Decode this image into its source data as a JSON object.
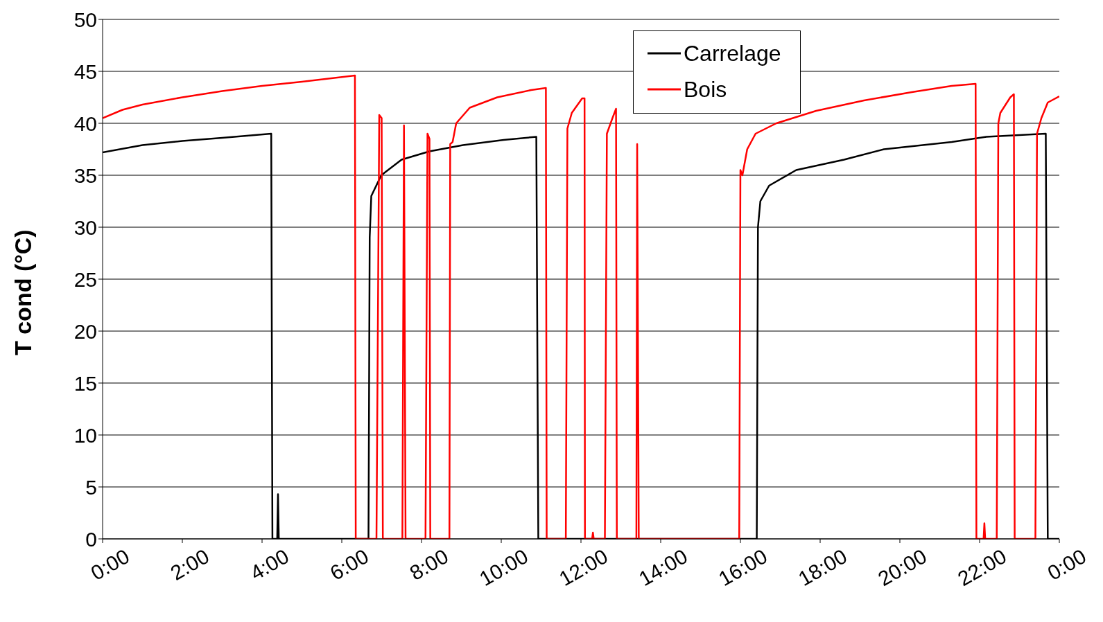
{
  "chart_data": {
    "type": "line",
    "ylabel": "T cond (°C)",
    "xlim": [
      0,
      24
    ],
    "ylim": [
      0,
      50
    ],
    "yticks": [
      0,
      5,
      10,
      15,
      20,
      25,
      30,
      35,
      40,
      45,
      50
    ],
    "xticks": [
      {
        "value": 0,
        "label": "0:00"
      },
      {
        "value": 2,
        "label": "2:00"
      },
      {
        "value": 4,
        "label": "4:00"
      },
      {
        "value": 6,
        "label": "6:00"
      },
      {
        "value": 8,
        "label": "8:00"
      },
      {
        "value": 10,
        "label": "10:00"
      },
      {
        "value": 12,
        "label": "12:00"
      },
      {
        "value": 14,
        "label": "14:00"
      },
      {
        "value": 16,
        "label": "16:00"
      },
      {
        "value": 18,
        "label": "18:00"
      },
      {
        "value": 20,
        "label": "20:00"
      },
      {
        "value": 22,
        "label": "22:00"
      },
      {
        "value": 24,
        "label": "0:00"
      }
    ],
    "grid": "y",
    "legend": "top right",
    "marker": "none",
    "line_style": "solid",
    "series": [
      {
        "name": "Carrelage",
        "color": "#000000",
        "x": [
          0,
          1,
          2,
          3,
          4.23,
          4.26,
          4.38,
          4.4,
          4.42,
          6.67,
          6.7,
          6.74,
          6.99,
          7.5,
          8.2,
          9.04,
          10.06,
          10.88,
          10.93,
          16.41,
          16.44,
          16.5,
          16.72,
          17.4,
          18.6,
          19.6,
          21.3,
          22.17,
          23.66,
          23.71,
          24
        ],
        "values": [
          37.2,
          37.9,
          38.3,
          38.6,
          39.0,
          0,
          0,
          4.3,
          0,
          0,
          29,
          33,
          35,
          36.5,
          37.3,
          37.9,
          38.4,
          38.7,
          0,
          0,
          30,
          32.5,
          34,
          35.5,
          36.5,
          37.5,
          38.2,
          38.7,
          39.0,
          0,
          0
        ]
      },
      {
        "name": "Bois",
        "color": "#ff0000",
        "x": [
          0,
          0.5,
          1,
          2,
          3,
          4,
          5,
          6.33,
          6.35,
          6.87,
          6.94,
          7.0,
          7.03,
          7.52,
          7.56,
          7.6,
          8.1,
          8.15,
          8.2,
          8.22,
          8.7,
          8.72,
          8.78,
          8.87,
          9.21,
          9.9,
          10.75,
          11.12,
          11.14,
          11.62,
          11.66,
          11.77,
          12.03,
          12.09,
          12.1,
          12.28,
          12.3,
          12.32,
          12.6,
          12.65,
          12.79,
          12.88,
          12.9,
          13.39,
          13.41,
          13.45,
          15.97,
          16.0,
          16.05,
          16.17,
          16.38,
          16.9,
          17.9,
          19.1,
          20.3,
          21.3,
          21.9,
          21.92,
          22.1,
          22.12,
          22.14,
          22.43,
          22.47,
          22.52,
          22.77,
          22.86,
          22.88,
          23.4,
          23.44,
          23.55,
          23.71,
          24
        ],
        "values": [
          40.5,
          41.3,
          41.8,
          42.5,
          43.1,
          43.6,
          44.0,
          44.6,
          0,
          0,
          40.8,
          40.5,
          0,
          0,
          39.8,
          0,
          0,
          39,
          38.5,
          0,
          0,
          38,
          38.2,
          40,
          41.5,
          42.5,
          43.2,
          43.4,
          0,
          0,
          39.5,
          41,
          42.4,
          42.4,
          0,
          0,
          0.6,
          0,
          0,
          39,
          40.5,
          41.4,
          0,
          0,
          38,
          0,
          0,
          35.5,
          35,
          37.5,
          39,
          40,
          41.2,
          42.2,
          43,
          43.6,
          43.8,
          0,
          0,
          1.5,
          0,
          0,
          40,
          41,
          42.5,
          42.8,
          0,
          0,
          39,
          40.5,
          42,
          42.6
        ]
      }
    ]
  }
}
